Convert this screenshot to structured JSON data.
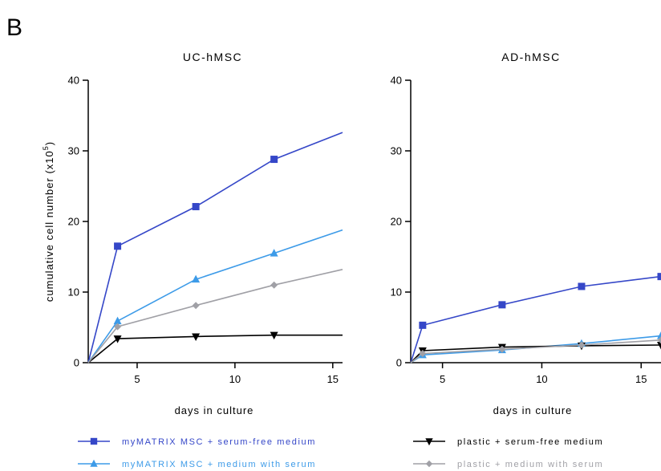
{
  "panel_label": "B",
  "colors": {
    "serum_free_matrix": "#3547c8",
    "serum_matrix": "#3d9be8",
    "plastic_serum_free": "#000000",
    "plastic_serum": "#a0a0a6"
  },
  "chart_data": [
    {
      "type": "line",
      "title": "UC-hMSC",
      "xlabel": "days in culture",
      "ylabel": "cumulative cell number (x10",
      "ylabel_superscript": "5",
      "ylabel_suffix": ")",
      "xlim": [
        2.5,
        15.5
      ],
      "ylim": [
        0,
        40
      ],
      "xticks": [
        5,
        10,
        15
      ],
      "yticks": [
        0,
        10,
        20,
        30,
        40
      ],
      "grid": false,
      "series": [
        {
          "name": "myMATRIX MSC + serum-free medium",
          "color": "#3547c8",
          "marker": "square",
          "x": [
            2.5,
            4,
            8,
            12,
            15.5
          ],
          "y": [
            0,
            16.5,
            22.1,
            28.8,
            32.6
          ],
          "marked": [
            false,
            true,
            true,
            true,
            false
          ]
        },
        {
          "name": "myMATRIX MSC + medium with serum",
          "color": "#3d9be8",
          "marker": "triangle-up",
          "x": [
            2.5,
            4,
            8,
            12,
            15.5
          ],
          "y": [
            0,
            5.9,
            11.8,
            15.5,
            18.8
          ],
          "marked": [
            false,
            true,
            true,
            true,
            false
          ]
        },
        {
          "name": "plastic + serum-free medium",
          "color": "#000000",
          "marker": "triangle-down",
          "x": [
            2.5,
            4,
            8,
            12,
            15.5
          ],
          "y": [
            0,
            3.4,
            3.7,
            3.9,
            3.9
          ],
          "marked": [
            false,
            true,
            true,
            true,
            false
          ]
        },
        {
          "name": "plastic + medium with serum",
          "color": "#a0a0a6",
          "marker": "diamond",
          "x": [
            2.5,
            4,
            8,
            12,
            15.5
          ],
          "y": [
            0,
            5.1,
            8.1,
            11.0,
            13.2
          ],
          "marked": [
            false,
            true,
            true,
            true,
            false
          ]
        }
      ]
    },
    {
      "type": "line",
      "title": "AD-hMSC",
      "xlabel": "days in culture",
      "xlim": [
        3.4,
        16
      ],
      "ylim": [
        0,
        40
      ],
      "xticks": [
        5,
        10,
        15
      ],
      "yticks": [
        0,
        10,
        20,
        30,
        40
      ],
      "grid": false,
      "series": [
        {
          "name": "myMATRIX MSC + serum-free medium",
          "color": "#3547c8",
          "marker": "square",
          "x": [
            3.4,
            4,
            8,
            12,
            16
          ],
          "y": [
            0,
            5.3,
            8.2,
            10.8,
            12.2
          ],
          "marked": [
            false,
            true,
            true,
            true,
            true
          ]
        },
        {
          "name": "myMATRIX MSC + medium with serum",
          "color": "#3d9be8",
          "marker": "triangle-up",
          "x": [
            3.4,
            4,
            8,
            12,
            16
          ],
          "y": [
            0,
            1.1,
            1.8,
            2.7,
            3.8
          ],
          "marked": [
            false,
            true,
            true,
            true,
            true
          ]
        },
        {
          "name": "plastic + serum-free medium",
          "color": "#000000",
          "marker": "triangle-down",
          "x": [
            3.4,
            4,
            8,
            12,
            16
          ],
          "y": [
            0,
            1.7,
            2.2,
            2.4,
            2.5
          ],
          "marked": [
            false,
            true,
            true,
            true,
            true
          ]
        },
        {
          "name": "plastic + medium with serum",
          "color": "#a0a0a6",
          "marker": "diamond",
          "x": [
            3.4,
            4,
            8,
            12,
            16
          ],
          "y": [
            0,
            1.3,
            1.9,
            2.5,
            3.2
          ],
          "marked": [
            false,
            true,
            true,
            true,
            true
          ]
        }
      ]
    }
  ],
  "legend": {
    "placement": "bottom",
    "items": [
      {
        "label": "myMATRIX MSC + serum-free medium",
        "color": "#3547c8",
        "marker": "square"
      },
      {
        "label": "plastic + serum-free medium",
        "color": "#000000",
        "marker": "triangle-down"
      },
      {
        "label": "myMATRIX MSC + medium with serum",
        "color": "#3d9be8",
        "marker": "triangle-up"
      },
      {
        "label": "plastic + medium with serum",
        "color": "#a0a0a6",
        "marker": "diamond"
      }
    ]
  }
}
